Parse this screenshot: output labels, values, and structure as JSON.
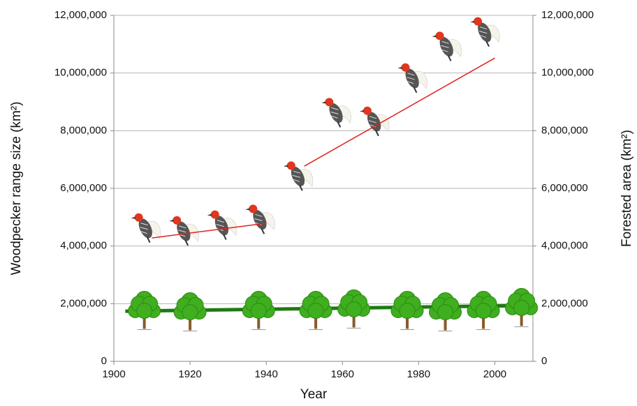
{
  "chart_data": {
    "type": "scatter",
    "xlabel": "Year",
    "ylabel": "Woodpecker range size (km²)",
    "y2label": "Forested area (km²)",
    "xlim": [
      1900,
      2010
    ],
    "xticks": [
      1900,
      1920,
      1940,
      1960,
      1980,
      2000
    ],
    "ylim": [
      0,
      12000000
    ],
    "yticks": [
      0,
      {
        "value": 2000000,
        "label": "2,000,000"
      },
      {
        "value": 4000000,
        "label": "4,000,000"
      },
      {
        "value": 6000000,
        "label": "6,000,000"
      },
      {
        "value": 8000000,
        "label": "8,000,000"
      },
      {
        "value": 10000000,
        "label": "10,000,000"
      },
      {
        "value": 12000000,
        "label": "12,000,000"
      }
    ],
    "y2lim": [
      0,
      12000000
    ],
    "y2ticks": [
      0,
      {
        "value": 2000000,
        "label": "2,000,000"
      },
      {
        "value": 4000000,
        "label": "4,000,000"
      },
      {
        "value": 6000000,
        "label": "6,000,000"
      },
      {
        "value": 8000000,
        "label": "8,000,000"
      },
      {
        "value": 10000000,
        "label": "10,000,000"
      },
      {
        "value": 12000000,
        "label": "12,000,000"
      }
    ],
    "grid": true,
    "series": [
      {
        "marker": "woodpecker",
        "color": "#555555",
        "x": [
          1908,
          1918,
          1928,
          1938,
          1948,
          1958,
          1968,
          1978,
          1987,
          1997
        ],
        "values": [
          4700000,
          4600000,
          4800000,
          5000000,
          6500000,
          8700000,
          8400000,
          9900000,
          11000000,
          11500000
        ]
      },
      {
        "marker": "tree",
        "color": "#3fae1f",
        "axis": "y2",
        "x": [
          1908,
          1920,
          1938,
          1953,
          1963,
          1977,
          1987,
          1997,
          2007
        ],
        "values": [
          1900000,
          1850000,
          1900000,
          1900000,
          1950000,
          1900000,
          1850000,
          1900000,
          2000000
        ]
      }
    ],
    "trend_lines": [
      {
        "color": "#e0231c",
        "x": [
          1910,
          1940
        ],
        "values": [
          4280000,
          4790000
        ]
      },
      {
        "color": "#e0231c",
        "x": [
          1950,
          2000
        ],
        "values": [
          6770000,
          10520000
        ]
      },
      {
        "color": "#1e7a12",
        "axis": "y2",
        "x": [
          1903,
          2011
        ],
        "values": [
          1740000,
          1940000
        ]
      }
    ]
  }
}
